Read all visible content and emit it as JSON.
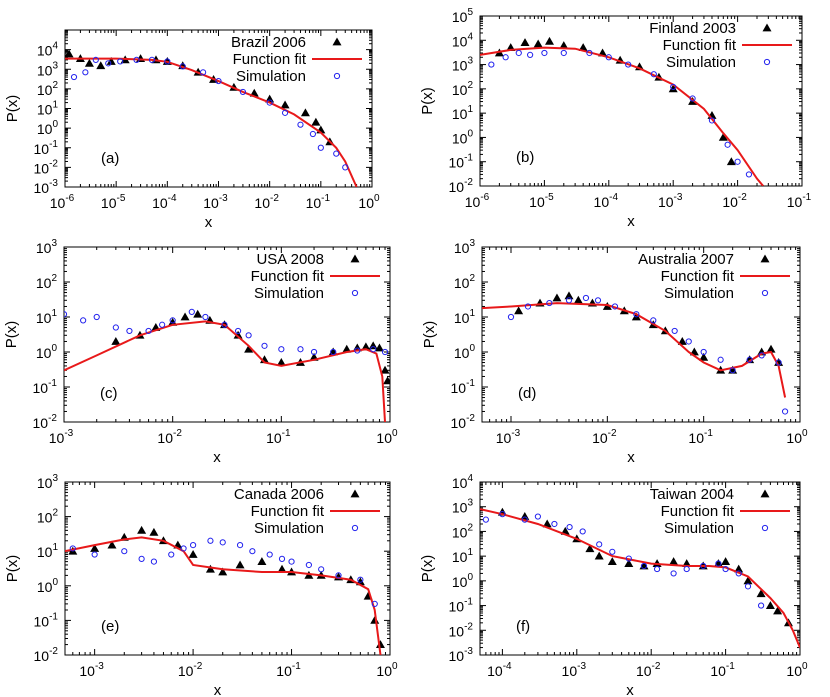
{
  "chart_data": [
    {
      "type": "scatter",
      "panel": "(a)",
      "xlabel": "x",
      "ylabel": "P(x)",
      "xscale": "log",
      "yscale": "log",
      "xlim": [
        1e-06,
        1
      ],
      "ylim": [
        0.001,
        100000.0
      ],
      "xtick_exponents": [
        -6,
        -5,
        -4,
        -3,
        -2,
        -1,
        0
      ],
      "ytick_exponents": [
        -3,
        -2,
        -1,
        0,
        1,
        2,
        3,
        4
      ],
      "legend_position": "top-right",
      "series": [
        {
          "name": "Brazil 2006",
          "kind": "triangles",
          "x": [
            1.2e-06,
            2e-06,
            3e-06,
            5e-06,
            8e-06,
            1.5e-05,
            3e-05,
            6e-05,
            0.0001,
            0.0002,
            0.0004,
            0.0008,
            0.002,
            0.005,
            0.01,
            0.02,
            0.05,
            0.08,
            0.1,
            0.15
          ],
          "y": [
            6000,
            3500,
            2000,
            1500,
            2500,
            3000,
            3500,
            3000,
            2500,
            1500,
            700,
            300,
            120,
            60,
            30,
            15,
            6,
            2,
            0.8,
            0.2
          ]
        },
        {
          "name": "Function fit",
          "kind": "line",
          "x": [
            1e-06,
            1e-05,
            5e-05,
            0.0001,
            0.0003,
            0.001,
            0.003,
            0.01,
            0.03,
            0.1,
            0.2,
            0.3,
            0.5
          ],
          "y": [
            3500,
            3500,
            3000,
            2400,
            900,
            250,
            70,
            20,
            5,
            0.6,
            0.1,
            0.02,
            0.001
          ]
        },
        {
          "name": "Simulation",
          "kind": "circles",
          "x": [
            1.5e-06,
            2.5e-06,
            4e-06,
            7e-06,
            1.2e-05,
            2.5e-05,
            5e-05,
            0.0001,
            0.0002,
            0.0005,
            0.001,
            0.003,
            0.01,
            0.02,
            0.04,
            0.07,
            0.1,
            0.2,
            0.3
          ],
          "y": [
            400,
            700,
            3000,
            2000,
            2500,
            3000,
            3000,
            2500,
            1400,
            700,
            250,
            70,
            20,
            6,
            1.5,
            0.5,
            0.1,
            0.05,
            0.01
          ]
        }
      ]
    },
    {
      "type": "scatter",
      "panel": "(b)",
      "xlabel": "x",
      "ylabel": "P(x)",
      "xscale": "log",
      "yscale": "log",
      "xlim": [
        1e-06,
        0.1
      ],
      "ylim": [
        0.01,
        100000.0
      ],
      "xtick_exponents": [
        -6,
        -5,
        -4,
        -3,
        -2,
        -1
      ],
      "ytick_exponents": [
        -2,
        -1,
        0,
        1,
        2,
        3,
        4,
        5
      ],
      "legend_position": "top-right",
      "series": [
        {
          "name": "Finland 2003",
          "kind": "triangles",
          "x": [
            2e-06,
            3e-06,
            5e-06,
            8e-06,
            1.2e-05,
            2e-05,
            4e-05,
            8e-05,
            0.00015,
            0.0003,
            0.0006,
            0.001,
            0.002,
            0.004,
            0.006,
            0.008
          ],
          "y": [
            3000,
            5000,
            8000,
            7000,
            9000,
            6000,
            5000,
            3000,
            1500,
            800,
            300,
            100,
            30,
            8,
            1,
            0.1
          ]
        },
        {
          "name": "Function fit",
          "kind": "line",
          "x": [
            1e-06,
            3e-06,
            1e-05,
            3e-05,
            0.0001,
            0.0003,
            0.001,
            0.003,
            0.006,
            0.01,
            0.02,
            0.025
          ],
          "y": [
            2500,
            4000,
            5000,
            4500,
            2000,
            700,
            150,
            15,
            1.5,
            0.3,
            0.02,
            0.01
          ]
        },
        {
          "name": "Simulation",
          "kind": "circles",
          "x": [
            1.5e-06,
            2.5e-06,
            4e-06,
            6e-06,
            1e-05,
            2e-05,
            5e-05,
            0.0001,
            0.0002,
            0.0005,
            0.001,
            0.002,
            0.004,
            0.007,
            0.01,
            0.015
          ],
          "y": [
            1000,
            2000,
            3000,
            2500,
            3000,
            3000,
            3000,
            2000,
            1000,
            400,
            120,
            40,
            5,
            0.5,
            0.1,
            0.03
          ]
        }
      ]
    },
    {
      "type": "scatter",
      "panel": "(c)",
      "xlabel": "x",
      "ylabel": "P(x)",
      "xscale": "log",
      "yscale": "log",
      "xlim": [
        0.001,
        1
      ],
      "ylim": [
        0.01,
        1000.0
      ],
      "xtick_exponents": [
        -3,
        -2,
        -1,
        0
      ],
      "ytick_exponents": [
        -2,
        -1,
        0,
        1,
        2,
        3
      ],
      "legend_position": "top-right",
      "series": [
        {
          "name": "USA 2008",
          "kind": "triangles",
          "x": [
            0.003,
            0.005,
            0.007,
            0.01,
            0.013,
            0.017,
            0.022,
            0.03,
            0.04,
            0.05,
            0.07,
            0.1,
            0.15,
            0.2,
            0.3,
            0.4,
            0.5,
            0.6,
            0.7,
            0.8,
            0.9,
            0.95
          ],
          "y": [
            2,
            3,
            5,
            7,
            10,
            12,
            8,
            6,
            3,
            1.2,
            0.6,
            0.5,
            0.5,
            0.7,
            1,
            1.2,
            1.3,
            1.4,
            1.5,
            1.3,
            0.3,
            0.15
          ]
        },
        {
          "name": "Function fit",
          "kind": "line",
          "x": [
            0.001,
            0.002,
            0.005,
            0.01,
            0.02,
            0.03,
            0.05,
            0.07,
            0.1,
            0.2,
            0.4,
            0.6,
            0.75,
            0.85,
            0.9
          ],
          "y": [
            0.3,
            0.8,
            3,
            6,
            7.5,
            6,
            1.5,
            0.5,
            0.4,
            0.6,
            1,
            1.2,
            0.9,
            0.2,
            0.01
          ]
        },
        {
          "name": "Simulation",
          "kind": "circles",
          "x": [
            0.001,
            0.0015,
            0.002,
            0.003,
            0.004,
            0.006,
            0.008,
            0.01,
            0.015,
            0.02,
            0.03,
            0.04,
            0.05,
            0.07,
            0.1,
            0.15,
            0.2,
            0.3,
            0.5,
            0.7,
            0.9
          ],
          "y": [
            12,
            8,
            10,
            5,
            4,
            4,
            6,
            8,
            14,
            10,
            6,
            4,
            3,
            1.5,
            1.2,
            1.2,
            1,
            1,
            1.1,
            1.2,
            1
          ]
        }
      ]
    },
    {
      "type": "scatter",
      "panel": "(d)",
      "xlabel": "x",
      "ylabel": "P(x)",
      "xscale": "log",
      "yscale": "log",
      "xlim": [
        0.0005,
        1
      ],
      "ylim": [
        0.01,
        1000.0
      ],
      "xtick_exponents": [
        -3,
        -2,
        -1,
        0
      ],
      "ytick_exponents": [
        -2,
        -1,
        0,
        1,
        2,
        3
      ],
      "legend_position": "top-right",
      "series": [
        {
          "name": "Australia 2007",
          "kind": "triangles",
          "x": [
            0.0012,
            0.002,
            0.003,
            0.004,
            0.005,
            0.007,
            0.01,
            0.015,
            0.02,
            0.03,
            0.04,
            0.06,
            0.08,
            0.1,
            0.15,
            0.2,
            0.3,
            0.4,
            0.5,
            0.6
          ],
          "y": [
            15,
            25,
            35,
            40,
            30,
            25,
            20,
            15,
            10,
            6,
            4,
            2,
            1,
            0.7,
            0.3,
            0.3,
            0.6,
            1,
            1.2,
            0.5
          ]
        },
        {
          "name": "Function fit",
          "kind": "line",
          "x": [
            0.0005,
            0.001,
            0.003,
            0.01,
            0.02,
            0.04,
            0.07,
            0.1,
            0.15,
            0.25,
            0.4,
            0.5,
            0.6,
            0.7
          ],
          "y": [
            18,
            20,
            25,
            22,
            12,
            4,
            1,
            0.5,
            0.3,
            0.4,
            0.9,
            1,
            0.4,
            0.05
          ]
        },
        {
          "name": "Simulation",
          "kind": "circles",
          "x": [
            0.001,
            0.0015,
            0.0025,
            0.004,
            0.006,
            0.008,
            0.012,
            0.02,
            0.03,
            0.05,
            0.07,
            0.1,
            0.15,
            0.2,
            0.3,
            0.4,
            0.6,
            0.7
          ],
          "y": [
            10,
            20,
            25,
            30,
            35,
            30,
            20,
            12,
            8,
            4,
            2,
            1,
            0.6,
            0.3,
            0.6,
            0.8,
            0.5,
            0.02
          ]
        }
      ]
    },
    {
      "type": "scatter",
      "panel": "(e)",
      "xlabel": "x",
      "ylabel": "P(x)",
      "xscale": "log",
      "yscale": "log",
      "xlim": [
        0.0005,
        1
      ],
      "ylim": [
        0.01,
        1000.0
      ],
      "xtick_exponents": [
        -3,
        -2,
        -1,
        0
      ],
      "ytick_exponents": [
        -2,
        -1,
        0,
        1,
        2,
        3
      ],
      "legend_position": "top-right",
      "series": [
        {
          "name": "Canada 2006",
          "kind": "triangles",
          "x": [
            0.0006,
            0.001,
            0.0015,
            0.002,
            0.003,
            0.004,
            0.005,
            0.007,
            0.01,
            0.015,
            0.02,
            0.03,
            0.05,
            0.08,
            0.1,
            0.15,
            0.2,
            0.3,
            0.4,
            0.5,
            0.6,
            0.7,
            0.8
          ],
          "y": [
            10,
            12,
            15,
            25,
            40,
            35,
            20,
            15,
            8,
            3,
            2.5,
            4,
            5,
            3,
            2.5,
            2,
            2,
            1.8,
            1.5,
            1.3,
            0.5,
            0.1,
            0.02
          ]
        },
        {
          "name": "Function fit",
          "kind": "line",
          "x": [
            0.0005,
            0.001,
            0.002,
            0.003,
            0.005,
            0.008,
            0.01,
            0.02,
            0.05,
            0.1,
            0.2,
            0.4,
            0.6,
            0.7,
            0.8
          ],
          "y": [
            10,
            15,
            22,
            25,
            20,
            10,
            4,
            3,
            2.5,
            2.5,
            2,
            1.5,
            0.8,
            0.2,
            0.01
          ]
        },
        {
          "name": "Simulation",
          "kind": "circles",
          "x": [
            0.0006,
            0.001,
            0.002,
            0.003,
            0.004,
            0.006,
            0.008,
            0.01,
            0.015,
            0.02,
            0.03,
            0.04,
            0.06,
            0.08,
            0.1,
            0.15,
            0.2,
            0.3,
            0.5,
            0.7
          ],
          "y": [
            12,
            8,
            10,
            6,
            5,
            8,
            12,
            15,
            20,
            18,
            15,
            10,
            8,
            6,
            5,
            4,
            3,
            2,
            1.5,
            0.3
          ]
        }
      ]
    },
    {
      "type": "scatter",
      "panel": "(f)",
      "xlabel": "x",
      "ylabel": "P(x)",
      "xscale": "log",
      "yscale": "log",
      "xlim": [
        5e-05,
        1
      ],
      "ylim": [
        0.001,
        10000.0
      ],
      "xtick_exponents": [
        -4,
        -3,
        -2,
        -1,
        0
      ],
      "ytick_exponents": [
        -3,
        -2,
        -1,
        0,
        1,
        2,
        3,
        4
      ],
      "legend_position": "top-right",
      "series": [
        {
          "name": "Taiwan 2004",
          "kind": "triangles",
          "x": [
            0.0001,
            0.0002,
            0.0004,
            0.0007,
            0.001,
            0.0015,
            0.002,
            0.003,
            0.005,
            0.008,
            0.012,
            0.02,
            0.03,
            0.05,
            0.08,
            0.1,
            0.15,
            0.2,
            0.3,
            0.4,
            0.5,
            0.7
          ],
          "y": [
            600,
            400,
            200,
            100,
            50,
            20,
            10,
            6,
            5,
            4,
            5,
            6,
            5,
            4,
            5,
            6,
            3,
            1,
            0.3,
            0.1,
            0.06,
            0.02
          ]
        },
        {
          "name": "Function fit",
          "kind": "line",
          "x": [
            5e-05,
            0.0001,
            0.0003,
            0.001,
            0.003,
            0.01,
            0.03,
            0.06,
            0.1,
            0.2,
            0.4,
            0.6,
            0.8,
            1.0
          ],
          "y": [
            800,
            500,
            200,
            50,
            10,
            5,
            4,
            4,
            3.5,
            1.5,
            0.2,
            0.05,
            0.01,
            0.002
          ]
        },
        {
          "name": "Simulation",
          "kind": "circles",
          "x": [
            6e-05,
            0.0001,
            0.0002,
            0.0003,
            0.0005,
            0.0008,
            0.0012,
            0.002,
            0.003,
            0.005,
            0.008,
            0.012,
            0.02,
            0.03,
            0.05,
            0.08,
            0.1,
            0.15,
            0.2,
            0.3
          ],
          "y": [
            300,
            500,
            300,
            400,
            200,
            150,
            100,
            30,
            15,
            8,
            4,
            3,
            2,
            3,
            4,
            5,
            3,
            2,
            0.6,
            0.1
          ]
        }
      ]
    }
  ],
  "colors": {
    "triangles": "#000000",
    "fit_line": "#e8191a",
    "circles": "#2222ee",
    "axes": "#000000"
  }
}
